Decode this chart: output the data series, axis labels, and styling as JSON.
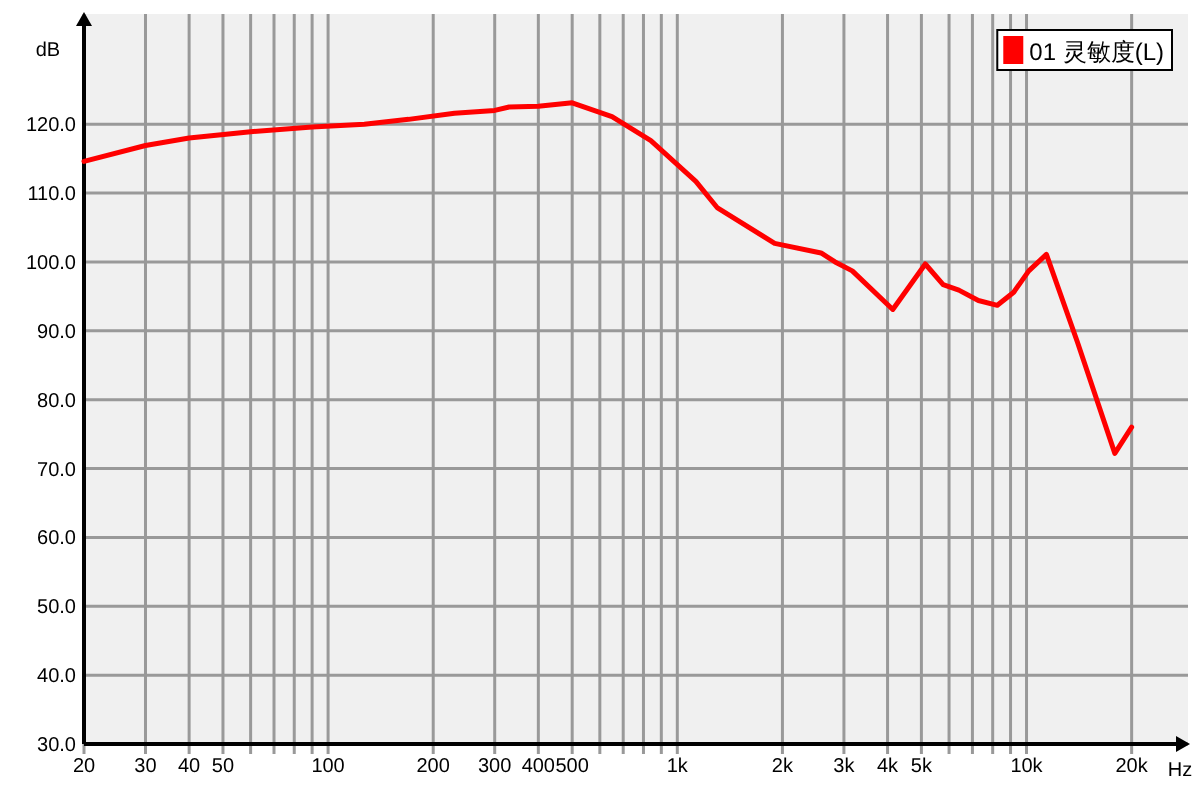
{
  "chart_data": {
    "type": "line",
    "xlabel": "Hz",
    "ylabel": "dB",
    "log": "x",
    "grid": true,
    "legend": "top right",
    "xlim": [
      20,
      29000
    ],
    "ylim": [
      30,
      136
    ],
    "xticks": [
      20,
      30,
      40,
      50,
      {
        "value": 60,
        "label": null
      },
      {
        "value": 70,
        "label": null
      },
      {
        "value": 80,
        "label": null
      },
      {
        "value": 90,
        "label": null
      },
      100,
      200,
      300,
      400,
      500,
      {
        "value": 600,
        "label": null
      },
      {
        "value": 700,
        "label": null
      },
      {
        "value": 800,
        "label": null
      },
      {
        "value": 900,
        "label": null
      },
      {
        "value": 1000,
        "label": "1k"
      },
      {
        "value": 2000,
        "label": "2k"
      },
      {
        "value": 3000,
        "label": "3k"
      },
      {
        "value": 4000,
        "label": "4k"
      },
      {
        "value": 5000,
        "label": "5k"
      },
      {
        "value": 6000,
        "label": null
      },
      {
        "value": 7000,
        "label": null
      },
      {
        "value": 8000,
        "label": null
      },
      {
        "value": 9000,
        "label": null
      },
      {
        "value": 10000,
        "label": "10k"
      },
      {
        "value": 20000,
        "label": "20k"
      }
    ],
    "yticks": [
      {
        "value": 30,
        "label": "30.0"
      },
      {
        "value": 40,
        "label": "40.0"
      },
      {
        "value": 50,
        "label": "50.0"
      },
      {
        "value": 60,
        "label": "60.0"
      },
      {
        "value": 70,
        "label": "70.0"
      },
      {
        "value": 80,
        "label": "80.0"
      },
      {
        "value": 90,
        "label": "90.0"
      },
      {
        "value": 100,
        "label": "100.0"
      },
      {
        "value": 110,
        "label": "110.0"
      },
      {
        "value": 120,
        "label": "120.0"
      }
    ],
    "x": [
      20,
      30,
      40,
      60,
      90,
      127,
      170,
      230,
      300,
      330,
      400,
      500,
      650,
      840,
      1130,
      1300,
      1900,
      2580,
      2830,
      3170,
      4140,
      5130,
      5770,
      6400,
      7280,
      8250,
      9190,
      10150,
      11400,
      14000,
      17900,
      20000
    ],
    "series": [
      {
        "name": "01 灵敏度(L)",
        "color": "#ff0000",
        "values": [
          114.6,
          116.9,
          118.0,
          118.9,
          119.6,
          120.0,
          120.7,
          121.6,
          122.0,
          122.5,
          122.6,
          123.1,
          121.1,
          117.6,
          111.7,
          107.9,
          102.7,
          101.3,
          100.0,
          98.7,
          93.1,
          99.7,
          96.7,
          95.9,
          94.4,
          93.7,
          95.6,
          98.7,
          101.1,
          88.3,
          72.2,
          76.0
        ]
      }
    ]
  }
}
